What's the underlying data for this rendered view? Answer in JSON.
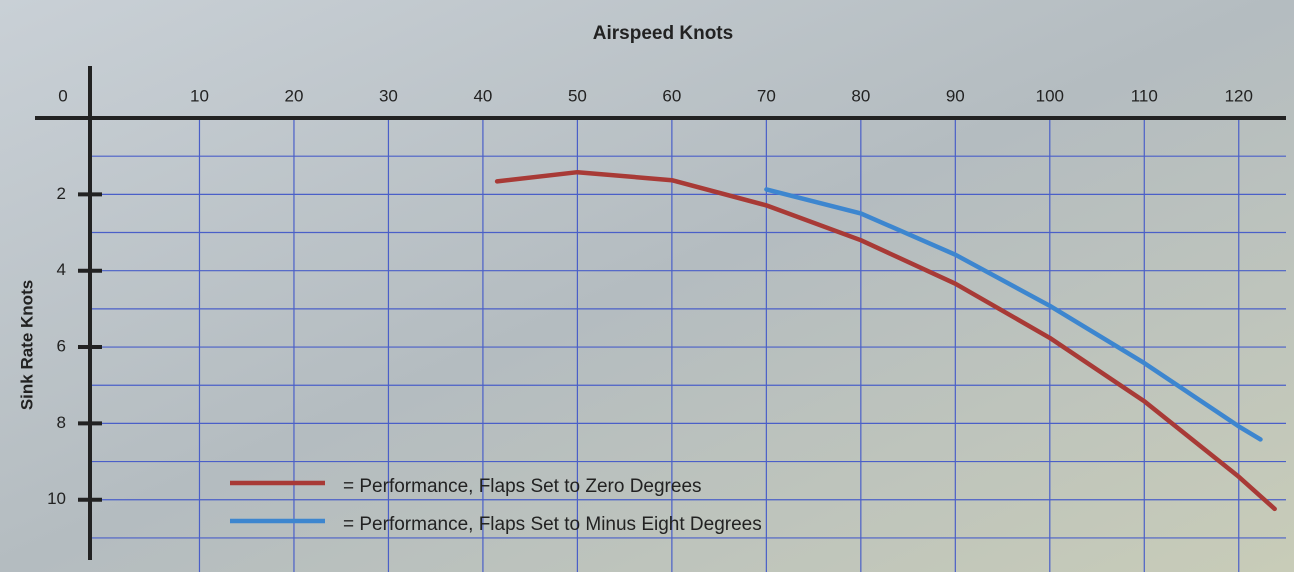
{
  "chart_data": {
    "type": "line",
    "title": "Airspeed Knots",
    "y_label": "Sink Rate Knots",
    "x_axis_position": "top",
    "y_inverted": true,
    "grid": true,
    "grid_color": "#4a5fc8",
    "xlim": [
      0,
      125
    ],
    "xticks": [
      0,
      10,
      20,
      30,
      40,
      50,
      60,
      70,
      80,
      90,
      100,
      110,
      120
    ],
    "ylim": [
      0,
      11.5
    ],
    "yticks": [
      2,
      4,
      6,
      8,
      10
    ],
    "y_minor_ticks": [
      1,
      3,
      5,
      7,
      9,
      11
    ],
    "legend": "bottom-left",
    "series": [
      {
        "name": "= Performance, Flaps Set to Zero Degrees",
        "color": "#a83a36",
        "x": [
          41.5,
          50,
          60,
          70,
          80,
          90,
          100,
          110,
          120,
          123.8
        ],
        "values": [
          1.66,
          1.42,
          1.63,
          2.29,
          3.2,
          4.34,
          5.76,
          7.42,
          9.4,
          10.24
        ]
      },
      {
        "name": "= Performance, Flaps Set to Minus Eight Degrees",
        "color": "#3d86cf",
        "x": [
          70,
          80,
          90,
          100,
          110,
          120,
          122.3
        ],
        "values": [
          1.87,
          2.5,
          3.58,
          4.92,
          6.42,
          8.08,
          8.42
        ]
      }
    ]
  }
}
